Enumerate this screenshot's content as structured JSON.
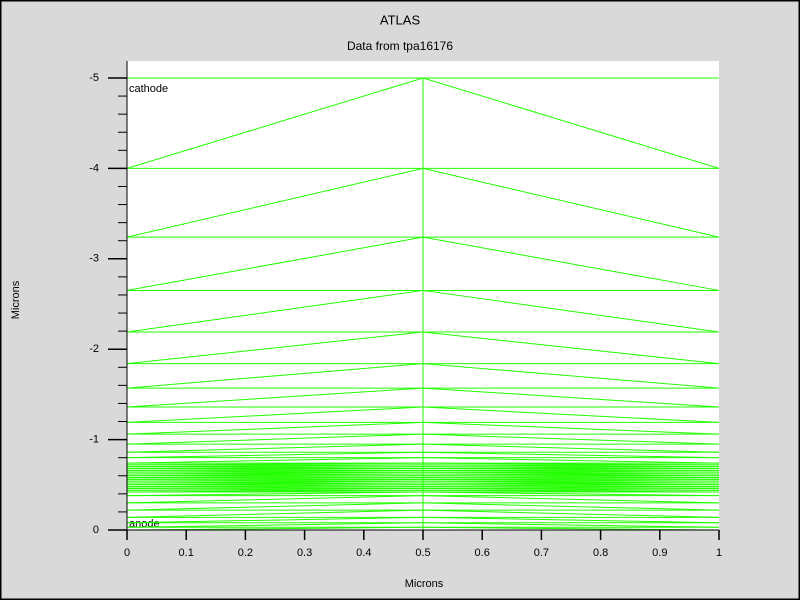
{
  "chart_data": {
    "type": "mesh",
    "title": "ATLAS",
    "subtitle": "Data from tpa16176",
    "x_label": "Microns",
    "y_label": "Microns",
    "annotations": [
      "cathode",
      "anode"
    ],
    "color": "#22ff00",
    "mesh_x": [
      0,
      0.5,
      1
    ],
    "mesh_y": [
      -5.0,
      -4.0,
      -3.24,
      -2.65,
      -2.19,
      -1.84,
      -1.57,
      -1.36,
      -1.19,
      -1.06,
      -0.95,
      -0.86,
      -0.8,
      -0.74,
      -0.72,
      -0.7,
      -0.68,
      -0.66,
      -0.64,
      -0.62,
      -0.6,
      -0.58,
      -0.56,
      -0.54,
      -0.52,
      -0.5,
      -0.48,
      -0.46,
      -0.44,
      -0.42,
      -0.38,
      -0.3,
      -0.22,
      -0.14,
      -0.08,
      -0.03,
      0
    ],
    "xlim": [
      0,
      1
    ],
    "xticks": [
      0,
      0.1,
      0.2,
      0.3,
      0.4,
      0.5,
      0.6,
      0.7,
      0.8,
      0.9,
      1
    ],
    "ylim": [
      0,
      -5
    ],
    "yticks": [
      0,
      -1,
      -2,
      -3,
      -4,
      -5
    ],
    "yminorticks": [
      -0.2,
      -0.4,
      -0.6,
      -0.8,
      -1.2,
      -1.4,
      -1.6,
      -1.8,
      -2.2,
      -2.4,
      -2.6,
      -2.8,
      -3.2,
      -3.4,
      -3.6,
      -3.8,
      -4.2,
      -4.4,
      -4.6,
      -4.8
    ]
  }
}
